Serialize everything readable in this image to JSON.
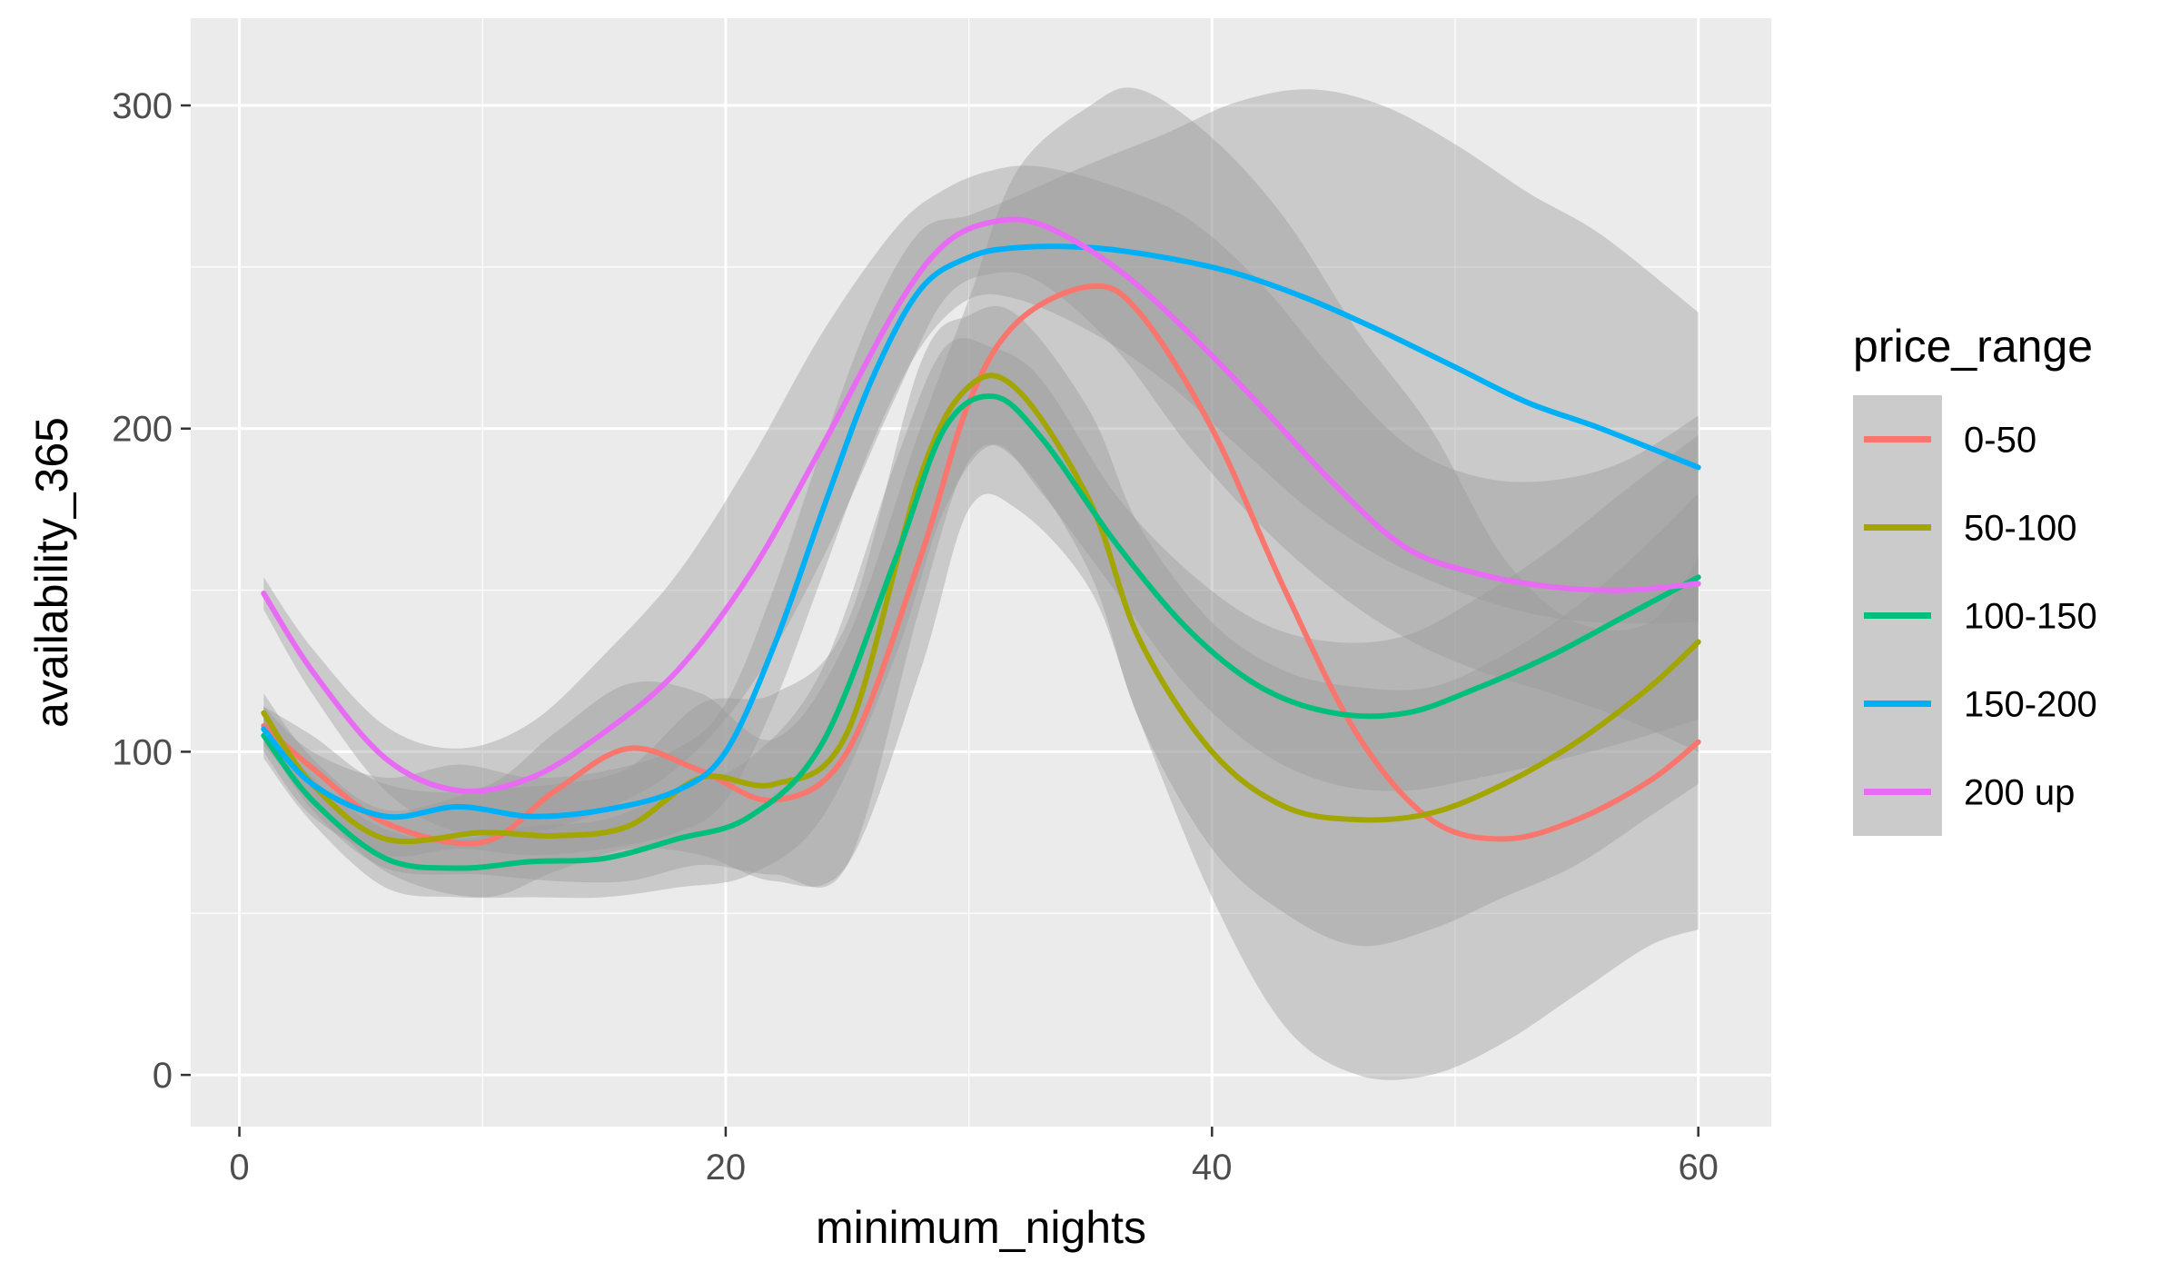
{
  "chart_data": {
    "type": "line",
    "xlabel": "minimum_nights",
    "ylabel": "availability_365",
    "xlim": [
      -2,
      63
    ],
    "ylim": [
      -16,
      327
    ],
    "x_ticks": [
      0,
      20,
      40,
      60
    ],
    "y_ticks": [
      0,
      100,
      200,
      300
    ],
    "x_tick_labels": [
      "0",
      "20",
      "40",
      "60"
    ],
    "y_tick_labels": [
      "0",
      "100",
      "200",
      "300"
    ],
    "grid": true,
    "legend": {
      "title": "price_range",
      "placement": "right",
      "entries": [
        "0-50",
        "50-100",
        "100-150",
        "150-200",
        "200 up"
      ]
    },
    "series": [
      {
        "name": "0-50",
        "color": "#F8766D",
        "x": [
          1,
          3,
          6,
          10,
          13,
          16,
          19,
          22,
          25,
          28,
          30,
          32,
          35,
          37,
          40,
          43,
          46,
          49,
          52,
          55,
          58,
          60
        ],
        "y": [
          108,
          95,
          78,
          72,
          88,
          101,
          94,
          85,
          100,
          160,
          208,
          233,
          244,
          236,
          200,
          150,
          105,
          79,
          73,
          79,
          91,
          103
        ],
        "lower": [
          102,
          85,
          63,
          55,
          63,
          70,
          68,
          60,
          65,
          125,
          175,
          175,
          150,
          110,
          55,
          15,
          0,
          0,
          10,
          25,
          40,
          45
        ],
        "upper": [
          114,
          105,
          90,
          89,
          106,
          121,
          118,
          104,
          135,
          200,
          240,
          280,
          300,
          305,
          290,
          265,
          230,
          200,
          160,
          140,
          140,
          160
        ]
      },
      {
        "name": "50-100",
        "color": "#A3A500",
        "x": [
          1,
          3,
          6,
          10,
          13,
          16,
          19,
          22,
          25,
          28,
          30,
          32,
          35,
          37,
          40,
          43,
          46,
          49,
          52,
          55,
          58,
          60
        ],
        "y": [
          112,
          90,
          73,
          75,
          74,
          77,
          92,
          90,
          106,
          185,
          213,
          212,
          177,
          135,
          100,
          83,
          79,
          81,
          90,
          103,
          120,
          134
        ],
        "lower": [
          105,
          82,
          64,
          62,
          60,
          60,
          65,
          62,
          65,
          145,
          190,
          190,
          155,
          110,
          70,
          50,
          40,
          45,
          55,
          65,
          80,
          90
        ],
        "upper": [
          118,
          98,
          82,
          88,
          90,
          95,
          115,
          118,
          140,
          220,
          235,
          235,
          205,
          170,
          140,
          125,
          120,
          120,
          130,
          145,
          165,
          180
        ]
      },
      {
        "name": "100-150",
        "color": "#00BF7D",
        "x": [
          1,
          3,
          6,
          9,
          12,
          15,
          18,
          21,
          24,
          27,
          29,
          31,
          33,
          36,
          39,
          42,
          45,
          48,
          51,
          54,
          57,
          60
        ],
        "y": [
          105,
          85,
          67,
          64,
          66,
          67,
          73,
          80,
          103,
          160,
          200,
          210,
          197,
          165,
          138,
          120,
          112,
          112,
          120,
          130,
          142,
          154
        ],
        "lower": [
          98,
          78,
          58,
          55,
          55,
          55,
          58,
          62,
          80,
          130,
          175,
          195,
          180,
          150,
          120,
          100,
          90,
          88,
          92,
          97,
          103,
          110
        ],
        "upper": [
          112,
          92,
          76,
          73,
          77,
          79,
          88,
          98,
          126,
          190,
          225,
          225,
          215,
          180,
          156,
          140,
          134,
          136,
          148,
          163,
          181,
          198
        ]
      },
      {
        "name": "150-200",
        "color": "#00B0F6",
        "x": [
          1,
          3,
          6,
          9,
          12,
          15,
          18,
          20,
          22,
          24,
          26,
          28,
          30,
          32,
          35,
          38,
          41,
          44,
          47,
          50,
          53,
          56,
          60
        ],
        "y": [
          107,
          90,
          80,
          83,
          80,
          82,
          88,
          100,
          133,
          175,
          215,
          243,
          253,
          256,
          256,
          253,
          248,
          240,
          230,
          219,
          208,
          200,
          188
        ],
        "lower": [
          100,
          80,
          68,
          70,
          68,
          70,
          75,
          85,
          115,
          155,
          195,
          225,
          240,
          240,
          230,
          215,
          195,
          175,
          160,
          150,
          143,
          140,
          140
        ],
        "upper": [
          114,
          100,
          92,
          96,
          92,
          94,
          101,
          115,
          151,
          195,
          235,
          261,
          266,
          272,
          282,
          291,
          301,
          305,
          300,
          288,
          273,
          260,
          236
        ]
      },
      {
        "name": "200 up",
        "color": "#E76BF3",
        "x": [
          1,
          3,
          6,
          9,
          12,
          15,
          18,
          21,
          24,
          27,
          29,
          31,
          33,
          36,
          39,
          42,
          45,
          48,
          51,
          54,
          57,
          60
        ],
        "y": [
          149,
          125,
          98,
          88,
          92,
          106,
          125,
          155,
          195,
          237,
          257,
          264,
          263,
          250,
          230,
          207,
          183,
          163,
          155,
          151,
          150,
          152
        ],
        "lower": [
          144,
          118,
          88,
          75,
          75,
          82,
          95,
          120,
          160,
          210,
          240,
          248,
          245,
          225,
          195,
          170,
          150,
          135,
          125,
          118,
          110,
          100
        ],
        "upper": [
          154,
          132,
          108,
          101,
          109,
          130,
          155,
          190,
          230,
          262,
          274,
          280,
          281,
          275,
          265,
          245,
          218,
          195,
          185,
          184,
          190,
          204
        ]
      }
    ]
  }
}
